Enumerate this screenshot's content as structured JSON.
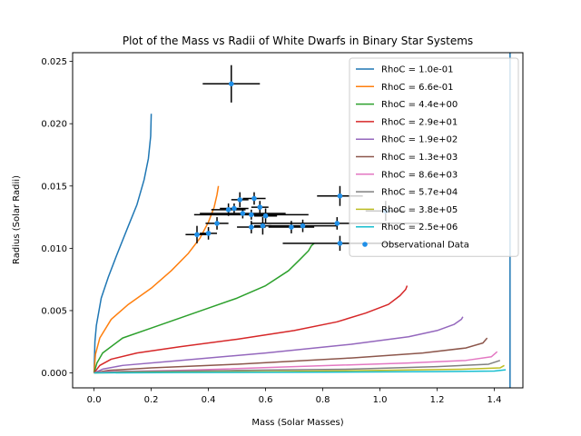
{
  "chart_data": {
    "type": "line",
    "title": "Plot of the Mass vs Radii of White Dwarfs in Binary Star Systems",
    "xlabel": "Mass (Solar Masses)",
    "ylabel": "Radius (Solar Radii)",
    "xlim": [
      -0.075,
      1.5
    ],
    "ylim": [
      -0.0012,
      0.0257
    ],
    "xticks": [
      0.0,
      0.2,
      0.4,
      0.6,
      0.8,
      1.0,
      1.2,
      1.4
    ],
    "xtick_labels": [
      "0.0",
      "0.2",
      "0.4",
      "0.6",
      "0.8",
      "1.0",
      "1.2",
      "1.4"
    ],
    "yticks": [
      0.0,
      0.005,
      0.01,
      0.015,
      0.02,
      0.025
    ],
    "ytick_labels": [
      "0.000",
      "0.005",
      "0.010",
      "0.015",
      "0.020",
      "0.025"
    ],
    "grid": false,
    "legend_position": "upper-right",
    "vertical_line": {
      "x": 1.455,
      "color": "#1f77b4"
    },
    "series": [
      {
        "name": "RhoC = 1.0e-01",
        "color": "#1f77b4",
        "points": [
          [
            0,
            0
          ],
          [
            0.003,
            0.0025
          ],
          [
            0.008,
            0.0038
          ],
          [
            0.025,
            0.006
          ],
          [
            0.05,
            0.0077
          ],
          [
            0.08,
            0.0095
          ],
          [
            0.12,
            0.0118
          ],
          [
            0.15,
            0.0135
          ],
          [
            0.175,
            0.0155
          ],
          [
            0.19,
            0.0172
          ],
          [
            0.198,
            0.019
          ],
          [
            0.2,
            0.0208
          ]
        ]
      },
      {
        "name": "RhoC = 6.6e-01",
        "color": "#ff7f0e",
        "points": [
          [
            0,
            0
          ],
          [
            0.005,
            0.0015
          ],
          [
            0.02,
            0.0028
          ],
          [
            0.06,
            0.0043
          ],
          [
            0.12,
            0.0055
          ],
          [
            0.2,
            0.0068
          ],
          [
            0.27,
            0.0082
          ],
          [
            0.33,
            0.0096
          ],
          [
            0.37,
            0.0108
          ],
          [
            0.4,
            0.0121
          ],
          [
            0.42,
            0.0133
          ],
          [
            0.43,
            0.0143
          ],
          [
            0.435,
            0.015
          ]
        ]
      },
      {
        "name": "RhoC = 4.4e+00",
        "color": "#2ca02c",
        "points": [
          [
            0,
            0
          ],
          [
            0.01,
            0.0008
          ],
          [
            0.03,
            0.0016
          ],
          [
            0.1,
            0.0028
          ],
          [
            0.2,
            0.0036
          ],
          [
            0.3,
            0.0044
          ],
          [
            0.4,
            0.0052
          ],
          [
            0.5,
            0.006
          ],
          [
            0.6,
            0.007
          ],
          [
            0.68,
            0.0082
          ],
          [
            0.72,
            0.0091
          ],
          [
            0.75,
            0.0098
          ],
          [
            0.76,
            0.0102
          ],
          [
            0.77,
            0.0104
          ]
        ]
      },
      {
        "name": "RhoC = 2.9e+01",
        "color": "#d62728",
        "points": [
          [
            0,
            0
          ],
          [
            0.02,
            0.0006
          ],
          [
            0.06,
            0.0011
          ],
          [
            0.15,
            0.0016
          ],
          [
            0.3,
            0.0021
          ],
          [
            0.5,
            0.0027
          ],
          [
            0.7,
            0.0034
          ],
          [
            0.85,
            0.0041
          ],
          [
            0.95,
            0.0048
          ],
          [
            1.03,
            0.0055
          ],
          [
            1.07,
            0.0062
          ],
          [
            1.09,
            0.0067
          ],
          [
            1.095,
            0.007
          ]
        ]
      },
      {
        "name": "RhoC = 1.9e+02",
        "color": "#9467bd",
        "points": [
          [
            0,
            0
          ],
          [
            0.03,
            0.0003
          ],
          [
            0.1,
            0.0006
          ],
          [
            0.3,
            0.001
          ],
          [
            0.6,
            0.0016
          ],
          [
            0.9,
            0.0023
          ],
          [
            1.1,
            0.0029
          ],
          [
            1.2,
            0.0034
          ],
          [
            1.26,
            0.0039
          ],
          [
            1.285,
            0.0043
          ],
          [
            1.29,
            0.0045
          ]
        ]
      },
      {
        "name": "RhoC = 1.3e+03",
        "color": "#8c564b",
        "points": [
          [
            0,
            0
          ],
          [
            0.05,
            0.0002
          ],
          [
            0.2,
            0.0004
          ],
          [
            0.5,
            0.0007
          ],
          [
            0.9,
            0.0012
          ],
          [
            1.15,
            0.0016
          ],
          [
            1.3,
            0.002
          ],
          [
            1.36,
            0.0024
          ],
          [
            1.375,
            0.0028
          ]
        ]
      },
      {
        "name": "RhoC = 8.6e+03",
        "color": "#e377c2",
        "points": [
          [
            0,
            0
          ],
          [
            0.05,
            0.0001
          ],
          [
            0.3,
            0.0002
          ],
          [
            0.7,
            0.0005
          ],
          [
            1.1,
            0.0008
          ],
          [
            1.3,
            0.001
          ],
          [
            1.39,
            0.0013
          ],
          [
            1.41,
            0.0017
          ]
        ]
      },
      {
        "name": "RhoC = 5.7e+04",
        "color": "#7f7f7f",
        "points": [
          [
            0,
            0
          ],
          [
            0.1,
            0.0001
          ],
          [
            0.5,
            0.0002
          ],
          [
            0.9,
            0.0003
          ],
          [
            1.2,
            0.0005
          ],
          [
            1.38,
            0.0007
          ],
          [
            1.42,
            0.001
          ]
        ]
      },
      {
        "name": "RhoC = 3.8e+05",
        "color": "#bcbd22",
        "points": [
          [
            0,
            0
          ],
          [
            0.2,
            5e-05
          ],
          [
            0.6,
            0.0001
          ],
          [
            1.0,
            0.0002
          ],
          [
            1.3,
            0.0003
          ],
          [
            1.42,
            0.0004
          ],
          [
            1.435,
            0.0006
          ]
        ]
      },
      {
        "name": "RhoC = 2.5e+06",
        "color": "#17becf",
        "points": [
          [
            0,
            0
          ],
          [
            0.3,
            3e-05
          ],
          [
            0.8,
            6e-05
          ],
          [
            1.2,
            0.0001
          ],
          [
            1.4,
            0.00015
          ],
          [
            1.44,
            0.00025
          ]
        ]
      }
    ],
    "observational": {
      "name": "Observational Data",
      "color": "#1f8fe8",
      "points": [
        {
          "x": 0.48,
          "y": 0.0232,
          "xerr": 0.1,
          "yerr": 0.0015
        },
        {
          "x": 0.51,
          "y": 0.0139,
          "xerr": 0.03,
          "yerr": 0.0006
        },
        {
          "x": 0.56,
          "y": 0.014,
          "xerr": 0.04,
          "yerr": 0.0005
        },
        {
          "x": 0.47,
          "y": 0.0131,
          "xerr": 0.06,
          "yerr": 0.0005
        },
        {
          "x": 0.49,
          "y": 0.0132,
          "xerr": 0.05,
          "yerr": 0.0004
        },
        {
          "x": 0.58,
          "y": 0.0133,
          "xerr": 0.03,
          "yerr": 0.0005
        },
        {
          "x": 0.52,
          "y": 0.0128,
          "xerr": 0.15,
          "yerr": 0.0004
        },
        {
          "x": 0.55,
          "y": 0.0127,
          "xerr": 0.2,
          "yerr": 0.0004
        },
        {
          "x": 0.6,
          "y": 0.0126,
          "xerr": 0.04,
          "yerr": 0.0006
        },
        {
          "x": 0.43,
          "y": 0.012,
          "xerr": 0.04,
          "yerr": 0.0005
        },
        {
          "x": 0.55,
          "y": 0.0117,
          "xerr": 0.05,
          "yerr": 0.0005
        },
        {
          "x": 0.69,
          "y": 0.0117,
          "xerr": 0.08,
          "yerr": 0.0005
        },
        {
          "x": 0.73,
          "y": 0.0118,
          "xerr": 0.12,
          "yerr": 0.0005
        },
        {
          "x": 0.85,
          "y": 0.012,
          "xerr": 0.3,
          "yerr": 0.0005
        },
        {
          "x": 0.59,
          "y": 0.0118,
          "xerr": 0.03,
          "yerr": 0.0007
        },
        {
          "x": 0.36,
          "y": 0.0111,
          "xerr": 0.04,
          "yerr": 0.0007
        },
        {
          "x": 0.4,
          "y": 0.0112,
          "xerr": 0.03,
          "yerr": 0.0005
        },
        {
          "x": 0.86,
          "y": 0.0142,
          "xerr": 0.08,
          "yerr": 0.0008
        },
        {
          "x": 1.02,
          "y": 0.013,
          "xerr": 0.07,
          "yerr": 0.0008
        },
        {
          "x": 0.86,
          "y": 0.0104,
          "xerr": 0.2,
          "yerr": 0.0006
        }
      ]
    }
  }
}
